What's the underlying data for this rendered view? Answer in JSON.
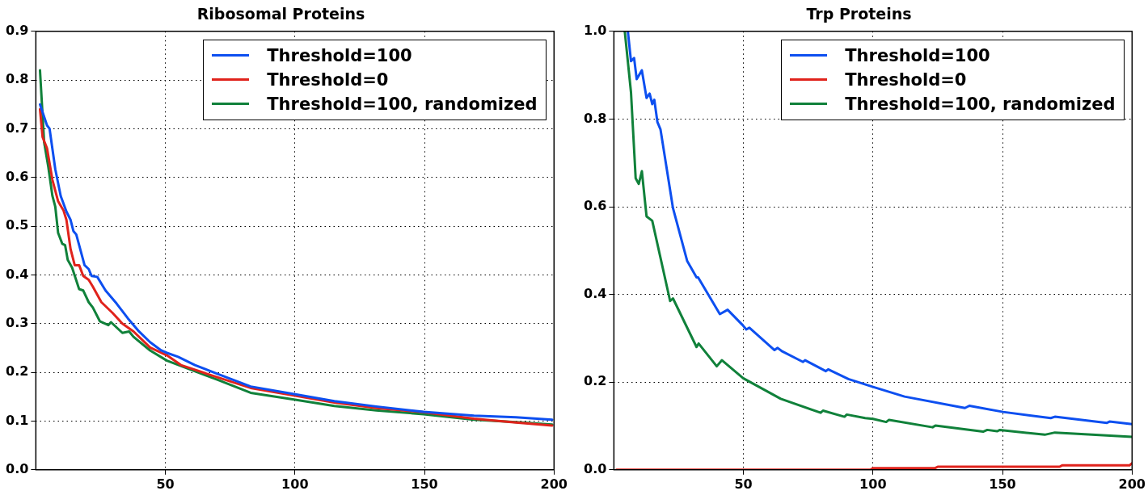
{
  "chart_data": [
    {
      "type": "line",
      "title": "Ribosomal Proteins",
      "xlim": [
        0,
        200
      ],
      "xticks": [
        50,
        100,
        150,
        200
      ],
      "ylim": [
        0,
        0.9
      ],
      "yticks": [
        {
          "value": 0,
          "label": "0.0"
        },
        {
          "value": 0.1,
          "label": "0.1"
        },
        {
          "value": 0.2,
          "label": "0.2"
        },
        {
          "value": 0.3,
          "label": "0.3"
        },
        {
          "value": 0.4,
          "label": "0.4"
        },
        {
          "value": 0.5,
          "label": "0.5"
        },
        {
          "value": 0.6,
          "label": "0.6"
        },
        {
          "value": 0.7,
          "label": "0.7"
        },
        {
          "value": 0.8,
          "label": "0.8"
        },
        {
          "value": 0.9,
          "label": "0.9"
        }
      ],
      "grid": true,
      "legend": "top right",
      "line_style": "solid",
      "marker": "none",
      "series": [
        {
          "name": "Threshold=100",
          "color": "#0d4ff0",
          "x": [
            1.6,
            4.3,
            5.3,
            7.5,
            9.6,
            11.8,
            13.4,
            14.5,
            15.6,
            18.8,
            20.4,
            21.5,
            23.7,
            26.9,
            31.2,
            35.5,
            39.8,
            44.1,
            48.4,
            50.6,
            54.9,
            61.4,
            70,
            82.9,
            100.1,
            115.2,
            131.4,
            149.7,
            169.1,
            185.3,
            199.3
          ],
          "values": [
            0.75,
            0.707,
            0.7,
            0.617,
            0.562,
            0.53,
            0.513,
            0.49,
            0.483,
            0.42,
            0.412,
            0.398,
            0.396,
            0.368,
            0.341,
            0.311,
            0.284,
            0.262,
            0.245,
            0.24,
            0.232,
            0.215,
            0.197,
            0.171,
            0.155,
            0.141,
            0.13,
            0.119,
            0.111,
            0.108,
            0.103
          ]
        },
        {
          "name": "Threshold=0",
          "color": "#e0231c",
          "x": [
            1.6,
            2.6,
            4.3,
            6.4,
            8.6,
            10.7,
            11.8,
            13.4,
            15,
            16.7,
            18.3,
            20.4,
            22,
            25.3,
            29.6,
            33.4,
            37.7,
            44.1,
            50.6,
            56,
            70,
            82.9,
            100.1,
            115.2,
            131.4,
            149.7,
            169.1,
            185.3,
            199.3
          ],
          "values": [
            0.74,
            0.683,
            0.66,
            0.595,
            0.551,
            0.532,
            0.513,
            0.453,
            0.42,
            0.42,
            0.398,
            0.39,
            0.376,
            0.344,
            0.322,
            0.3,
            0.284,
            0.251,
            0.235,
            0.215,
            0.19,
            0.168,
            0.152,
            0.138,
            0.127,
            0.118,
            0.105,
            0.097,
            0.091
          ]
        },
        {
          "name": "Threshold=100, randomized",
          "color": "#10813a",
          "x": [
            1.6,
            3.2,
            4.8,
            6.4,
            7.5,
            8.6,
            10.2,
            11.3,
            12.3,
            14,
            16.7,
            18.3,
            20.4,
            22,
            24.7,
            28,
            29,
            33.4,
            36,
            37.7,
            44.1,
            50.6,
            70,
            82.9,
            100.1,
            115.2,
            131.4,
            149.7,
            169.1,
            185.3,
            199.3
          ],
          "values": [
            0.82,
            0.672,
            0.622,
            0.562,
            0.54,
            0.486,
            0.464,
            0.461,
            0.431,
            0.415,
            0.371,
            0.368,
            0.344,
            0.333,
            0.305,
            0.297,
            0.303,
            0.281,
            0.284,
            0.273,
            0.245,
            0.224,
            0.185,
            0.158,
            0.144,
            0.131,
            0.122,
            0.114,
            0.103,
            0.098,
            0.093
          ]
        }
      ]
    },
    {
      "type": "line",
      "title": "Trp Proteins",
      "xlim": [
        0,
        200
      ],
      "xticks": [
        50,
        100,
        150,
        200
      ],
      "ylim": [
        0,
        1
      ],
      "yticks": [
        {
          "value": 0,
          "label": "0.0"
        },
        {
          "value": 0.2,
          "label": "0.2"
        },
        {
          "value": 0.4,
          "label": "0.4"
        },
        {
          "value": 0.6,
          "label": "0.6"
        },
        {
          "value": 0.8,
          "label": "0.8"
        },
        {
          "value": 1,
          "label": "1.0"
        }
      ],
      "grid": true,
      "legend": "top right",
      "line_style": "solid",
      "marker": "none",
      "series": [
        {
          "name": "Threshold=100",
          "color": "#0d4ff0",
          "x": [
            5.4,
            6.6,
            7.8,
            8.8,
            10.8,
            12.6,
            13.8,
            14.8,
            15.6,
            16.8,
            18,
            22.8,
            28.3,
            31.9,
            32.5,
            40.9,
            43.9,
            49.7,
            51.1,
            52.3,
            62,
            63.2,
            65,
            73,
            73.8,
            81.8,
            82.7,
            90.5,
            100,
            112.2,
            133.8,
            135.5,
            137.2,
            150.2,
            168.6,
            170.2,
            190.3,
            191.3,
            200
          ],
          "values": [
            1,
            0.932,
            0.939,
            0.891,
            0.911,
            0.848,
            0.858,
            0.834,
            0.844,
            0.793,
            0.776,
            0.597,
            0.476,
            0.439,
            0.439,
            0.355,
            0.365,
            0.33,
            0.32,
            0.324,
            0.273,
            0.278,
            0.27,
            0.246,
            0.25,
            0.225,
            0.229,
            0.207,
            0.189,
            0.167,
            0.143,
            0.141,
            0.146,
            0.132,
            0.118,
            0.121,
            0.107,
            0.11,
            0.104
          ]
        },
        {
          "name": "Threshold=0",
          "color": "#e0231c",
          "x": [
            1,
            99,
            100,
            124,
            125,
            172,
            173,
            199,
            200
          ],
          "values": [
            0,
            0,
            0.004,
            0.004,
            0.007,
            0.007,
            0.01,
            0.01,
            0.015
          ]
        },
        {
          "name": "Threshold=100, randomized",
          "color": "#10813a",
          "x": [
            4.2,
            6.6,
            8.4,
            9.6,
            10.8,
            12.6,
            14.8,
            21.7,
            22.8,
            31.9,
            32.7,
            39.7,
            41.7,
            49.9,
            64.4,
            79.8,
            80.7,
            89,
            89.9,
            97,
            100,
            105.1,
            106.2,
            123,
            124.1,
            142.5,
            144.1,
            147.9,
            149,
            166.3,
            170.2,
            176.1,
            200
          ],
          "values": [
            1,
            0.861,
            0.665,
            0.652,
            0.681,
            0.578,
            0.568,
            0.385,
            0.391,
            0.28,
            0.288,
            0.236,
            0.25,
            0.209,
            0.162,
            0.13,
            0.135,
            0.121,
            0.126,
            0.118,
            0.116,
            0.109,
            0.114,
            0.097,
            0.101,
            0.087,
            0.091,
            0.088,
            0.091,
            0.08,
            0.085,
            0.083,
            0.075
          ]
        }
      ]
    }
  ]
}
